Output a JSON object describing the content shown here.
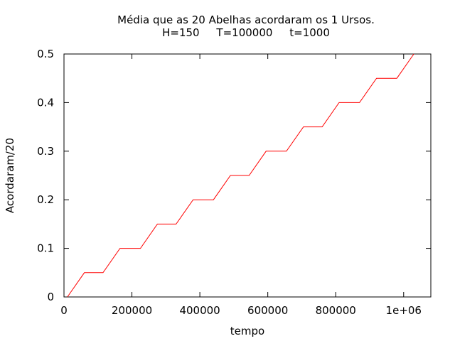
{
  "chart_data": {
    "type": "line",
    "title_line1": "Média que as 20 Abelhas acordaram os 1 Ursos.",
    "title_line2": "H=150     T=100000     t=1000",
    "xlabel": "tempo",
    "ylabel": "Acordaram/20",
    "xlim": [
      0,
      1080000
    ],
    "ylim": [
      0,
      0.5
    ],
    "x_ticks": [
      0,
      200000,
      400000,
      600000,
      800000,
      1000000
    ],
    "x_tick_labels": [
      "0",
      "200000",
      "400000",
      "600000",
      "800000",
      "1e+06"
    ],
    "y_ticks": [
      0,
      0.1,
      0.2,
      0.3,
      0.4,
      0.5
    ],
    "y_tick_labels": [
      "0",
      "0.1",
      "0.2",
      "0.3",
      "0.4",
      "0.5"
    ],
    "grid": false,
    "series": [
      {
        "color": "#ff0000",
        "x": [
          10000,
          60000,
          115000,
          165000,
          225000,
          275000,
          330000,
          380000,
          440000,
          490000,
          545000,
          595000,
          655000,
          705000,
          760000,
          810000,
          870000,
          920000,
          980000,
          1030000
        ],
        "y": [
          0,
          0.05,
          0.05,
          0.1,
          0.1,
          0.15,
          0.15,
          0.2,
          0.2,
          0.25,
          0.25,
          0.3,
          0.3,
          0.35,
          0.35,
          0.4,
          0.4,
          0.45,
          0.45,
          0.5
        ]
      }
    ]
  }
}
